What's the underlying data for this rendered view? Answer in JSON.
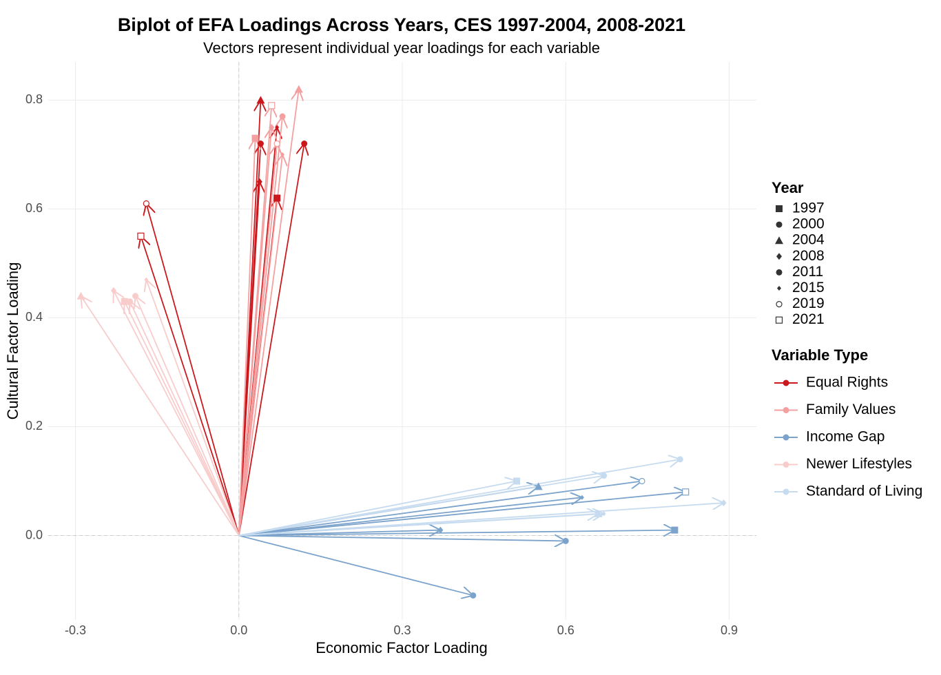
{
  "chart_data": {
    "type": "biplot",
    "title": "Biplot of EFA Loadings Across Years, CES 1997-2004, 2008-2021",
    "subtitle": "Vectors represent individual year loadings for each variable",
    "x_label": "Economic Factor Loading",
    "y_label": "Cultural Factor Loading",
    "xlim": [
      -0.35,
      0.95
    ],
    "ylim": [
      -0.155,
      0.87
    ],
    "xticks": [
      -0.3,
      {
        "value": 0,
        "label": "0.0"
      },
      0.3,
      0.6,
      0.9
    ],
    "yticks": [
      {
        "value": 0,
        "label": "0.0"
      },
      0.2,
      0.4,
      0.6,
      0.8
    ],
    "grid": true,
    "zero_lines": true,
    "year_legend_title": "Year",
    "years": [
      "1997",
      "2000",
      "2004",
      "2008",
      "2011",
      "2015",
      "2019",
      "2021"
    ],
    "year_shapes": [
      "square",
      "circle",
      "triangle",
      "diamond",
      "circle",
      "small-diamond",
      "open-circle",
      "open-square"
    ],
    "series_legend_title": "Variable Type",
    "series": [
      {
        "name": "Equal Rights",
        "color": "#cb181d",
        "x": [
          0.07,
          0.04,
          0.04,
          0.038,
          0.12,
          0.07,
          -0.17,
          -0.18
        ],
        "values": [
          0.62,
          0.72,
          0.8,
          0.65,
          0.72,
          0.75,
          0.61,
          0.55
        ]
      },
      {
        "name": "Family Values",
        "color": "#f4a0a0",
        "x": [
          0.03,
          0.08,
          0.11,
          0.06,
          0.07,
          0.08,
          0.07,
          0.06
        ],
        "values": [
          0.73,
          0.77,
          0.82,
          0.75,
          0.72,
          0.7,
          0.72,
          0.79
        ]
      },
      {
        "name": "Income Gap",
        "color": "#7ba3cc",
        "x": [
          0.8,
          0.6,
          0.55,
          0.37,
          0.43,
          0.63,
          0.74,
          0.82
        ],
        "values": [
          0.01,
          -0.01,
          0.09,
          0.01,
          -0.11,
          0.07,
          0.1,
          0.08
        ]
      },
      {
        "name": "Newer Lifestyles",
        "color": "#f9cccc",
        "x": [
          -0.21,
          -0.2,
          -0.29,
          -0.23,
          -0.19,
          -0.17,
          null,
          null
        ],
        "values": [
          0.43,
          0.43,
          0.44,
          0.45,
          0.44,
          0.47,
          null,
          null
        ]
      },
      {
        "name": "Standard of Living",
        "color": "#c6dbef",
        "x": [
          0.51,
          0.67,
          0.66,
          0.89,
          0.81,
          0.67,
          null,
          null
        ],
        "values": [
          0.1,
          0.11,
          0.04,
          0.06,
          0.14,
          0.04,
          null,
          null
        ]
      }
    ]
  }
}
